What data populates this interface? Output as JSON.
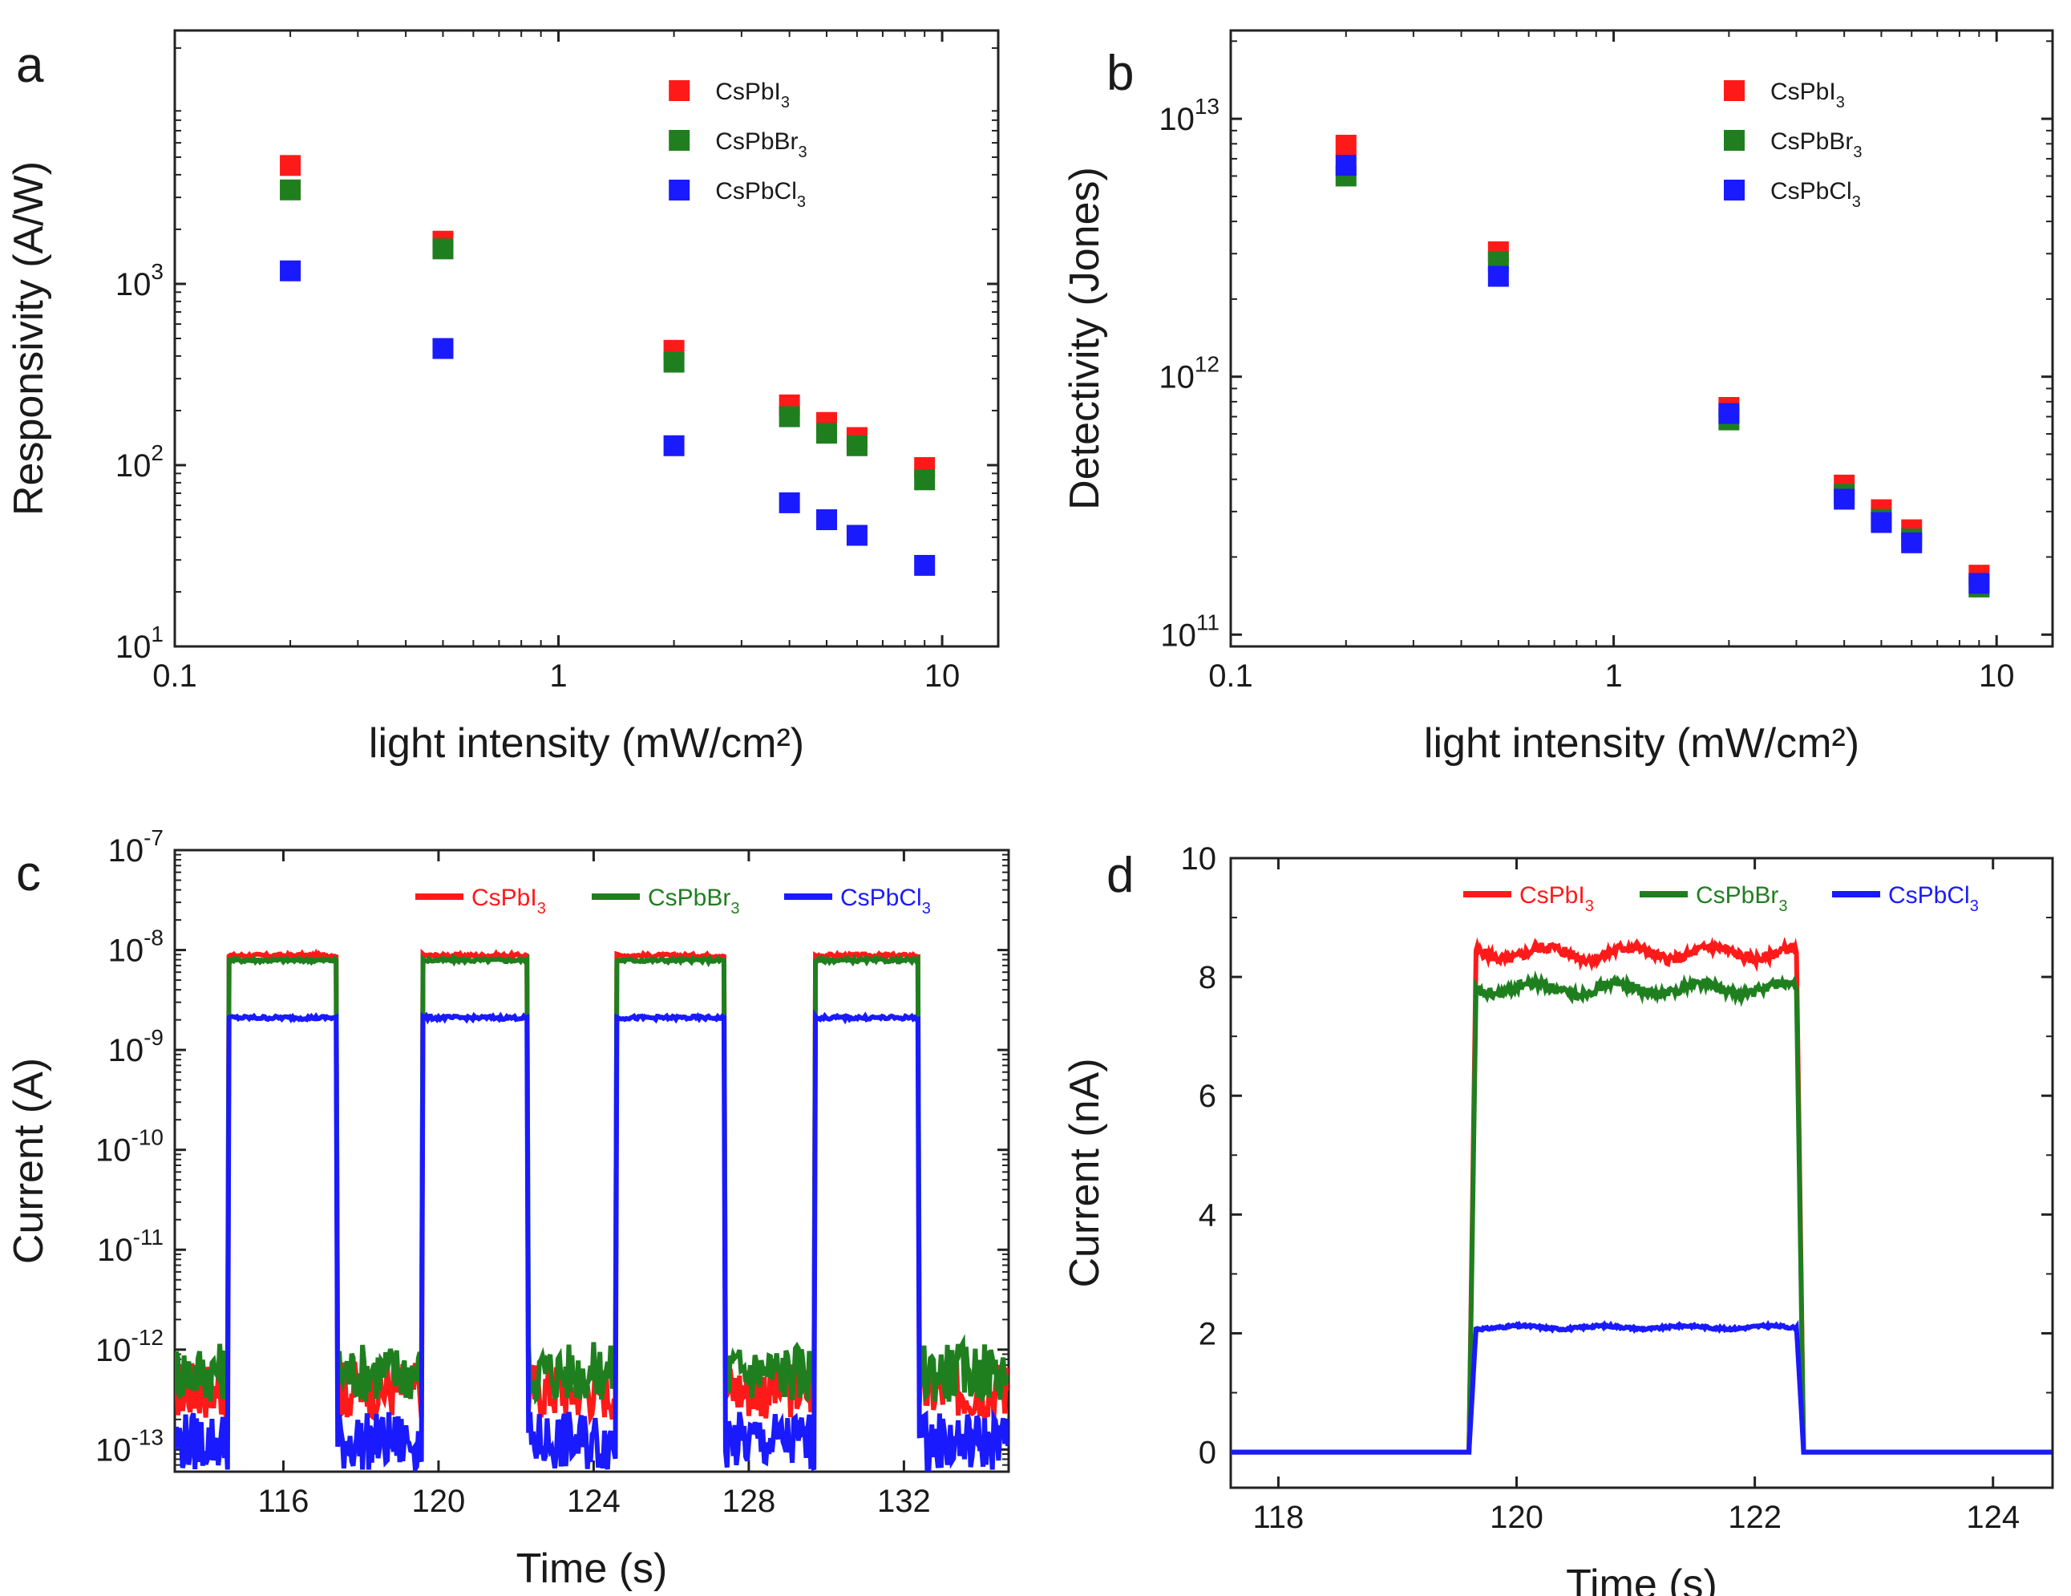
{
  "chart_data": [
    {
      "id": "a",
      "panel_label": "a",
      "type": "scatter",
      "xscale": "log",
      "yscale": "log",
      "xlim": [
        0.1,
        14
      ],
      "ylim": [
        10,
        25000
      ],
      "xlabel": "light intensity (mW/cm²)",
      "ylabel": "Responsivity (A/W)",
      "xticks": [
        {
          "v": 0.1,
          "label": "0.1"
        },
        {
          "v": 1,
          "label": "1"
        },
        {
          "v": 10,
          "label": "10"
        }
      ],
      "yticks": [
        {
          "v": 10,
          "base": "10",
          "exp": "1"
        },
        {
          "v": 100,
          "base": "10",
          "exp": "2"
        },
        {
          "v": 1000,
          "base": "10",
          "exp": "3"
        }
      ],
      "legend_position": "top-right",
      "x": [
        0.2,
        0.5,
        2,
        4,
        5,
        6,
        9
      ],
      "series": [
        {
          "name": "CsPbI3",
          "formula_base": "CsPbI",
          "formula_sub": "3",
          "color": "#ff1a1a",
          "values": [
            4500,
            1720,
            430,
            215,
            172,
            142,
            97
          ]
        },
        {
          "name": "CsPbBr3",
          "formula_base": "CsPbBr",
          "formula_sub": "3",
          "color": "#1f7f1f",
          "values": [
            3300,
            1560,
            370,
            185,
            150,
            128,
            83
          ]
        },
        {
          "name": "CsPbCl3",
          "formula_base": "CsPbCl",
          "formula_sub": "3",
          "color": "#1a1aff",
          "values": [
            1180,
            440,
            128,
            62,
            50,
            41,
            28
          ]
        }
      ]
    },
    {
      "id": "b",
      "panel_label": "b",
      "type": "scatter",
      "xscale": "log",
      "yscale": "log",
      "xlim": [
        0.1,
        14
      ],
      "ylim": [
        90000000000,
        22000000000000
      ],
      "xlabel": "light intensity (mW/cm²)",
      "ylabel": "Detectivity (Jones)",
      "xticks": [
        {
          "v": 0.1,
          "label": "0.1"
        },
        {
          "v": 1,
          "label": "1"
        },
        {
          "v": 10,
          "label": "10"
        }
      ],
      "yticks": [
        {
          "v": 100000000000,
          "base": "10",
          "exp": "11"
        },
        {
          "v": 1000000000000,
          "base": "10",
          "exp": "12"
        },
        {
          "v": 10000000000000,
          "base": "10",
          "exp": "13"
        }
      ],
      "legend_position": "top-right",
      "x": [
        0.2,
        0.5,
        2,
        4,
        5,
        6,
        9
      ],
      "series": [
        {
          "name": "CsPbI3",
          "formula_base": "CsPbI",
          "formula_sub": "3",
          "color": "#ff1a1a",
          "values": [
            7900000000000,
            3050000000000,
            760000000000,
            380000000000,
            305000000000,
            255000000000,
            170000000000
          ]
        },
        {
          "name": "CsPbBr3",
          "formula_base": "CsPbBr",
          "formula_sub": "3",
          "color": "#1f7f1f",
          "values": [
            6000000000000,
            2800000000000,
            680000000000,
            350000000000,
            280000000000,
            235000000000,
            153000000000
          ]
        },
        {
          "name": "CsPbCl3",
          "formula_base": "CsPbCl",
          "formula_sub": "3",
          "color": "#1a1aff",
          "values": [
            6600000000000,
            2450000000000,
            720000000000,
            335000000000,
            272000000000,
            227000000000,
            158000000000
          ]
        }
      ]
    },
    {
      "id": "c",
      "panel_label": "c",
      "type": "line",
      "xscale": "linear",
      "yscale": "log",
      "xlim": [
        113.2,
        134.7
      ],
      "ylim": [
        6e-14,
        1e-07
      ],
      "xlabel": "Time (s)",
      "ylabel": "Current (A)",
      "xticks": [
        {
          "v": 116,
          "label": "116"
        },
        {
          "v": 120,
          "label": "120"
        },
        {
          "v": 124,
          "label": "124"
        },
        {
          "v": 128,
          "label": "128"
        },
        {
          "v": 132,
          "label": "132"
        }
      ],
      "yticks": [
        {
          "v": 1e-07,
          "base": "10",
          "exp": "-7"
        },
        {
          "v": 1e-08,
          "base": "10",
          "exp": "-8"
        },
        {
          "v": 1e-09,
          "base": "10",
          "exp": "-9"
        },
        {
          "v": 1e-10,
          "base": "10",
          "exp": "-10"
        },
        {
          "v": 1e-11,
          "base": "10",
          "exp": "-11"
        },
        {
          "v": 1e-12,
          "base": "10",
          "exp": "-12"
        },
        {
          "v": 1e-13,
          "base": "10",
          "exp": "-13"
        }
      ],
      "legend_position": "top",
      "pulses": [
        [
          114.6,
          117.4
        ],
        [
          119.6,
          122.3
        ],
        [
          124.6,
          127.4
        ],
        [
          129.7,
          132.4
        ]
      ],
      "series": [
        {
          "name": "CsPbI3",
          "formula_base": "CsPbI",
          "formula_sub": "3",
          "color": "#ff1a1a",
          "on": 8.8e-09,
          "off": 4e-13
        },
        {
          "name": "CsPbBr3",
          "formula_base": "CsPbBr",
          "formula_sub": "3",
          "color": "#1f7f1f",
          "on": 7.9e-09,
          "off": 6e-13
        },
        {
          "name": "CsPbCl3",
          "formula_base": "CsPbCl",
          "formula_sub": "3",
          "color": "#1a1aff",
          "on": 2.1e-09,
          "off": 1.2e-13
        }
      ]
    },
    {
      "id": "d",
      "panel_label": "d",
      "type": "line",
      "xscale": "linear",
      "yscale": "linear",
      "xlim": [
        117.6,
        124.5
      ],
      "ylim": [
        -0.6,
        10
      ],
      "xlabel": "Time (s)",
      "ylabel": "Current (nA)",
      "xticks": [
        {
          "v": 118,
          "label": "118"
        },
        {
          "v": 120,
          "label": "120"
        },
        {
          "v": 122,
          "label": "122"
        },
        {
          "v": 124,
          "label": "124"
        }
      ],
      "yticks": [
        {
          "v": 0,
          "label": "0"
        },
        {
          "v": 2,
          "label": "2"
        },
        {
          "v": 4,
          "label": "4"
        },
        {
          "v": 6,
          "label": "6"
        },
        {
          "v": 8,
          "label": "8"
        },
        {
          "v": 10,
          "label": "10"
        }
      ],
      "legend_position": "top",
      "pulse": [
        119.6,
        122.35
      ],
      "series": [
        {
          "name": "CsPbI3",
          "formula_base": "CsPbI",
          "formula_sub": "3",
          "color": "#ff1a1a",
          "on": 8.4,
          "off": 0
        },
        {
          "name": "CsPbBr3",
          "formula_base": "CsPbBr",
          "formula_sub": "3",
          "color": "#1f7f1f",
          "on": 7.8,
          "off": 0
        },
        {
          "name": "CsPbCl3",
          "formula_base": "CsPbCl",
          "formula_sub": "3",
          "color": "#1a1aff",
          "on": 2.1,
          "off": 0
        }
      ]
    }
  ]
}
